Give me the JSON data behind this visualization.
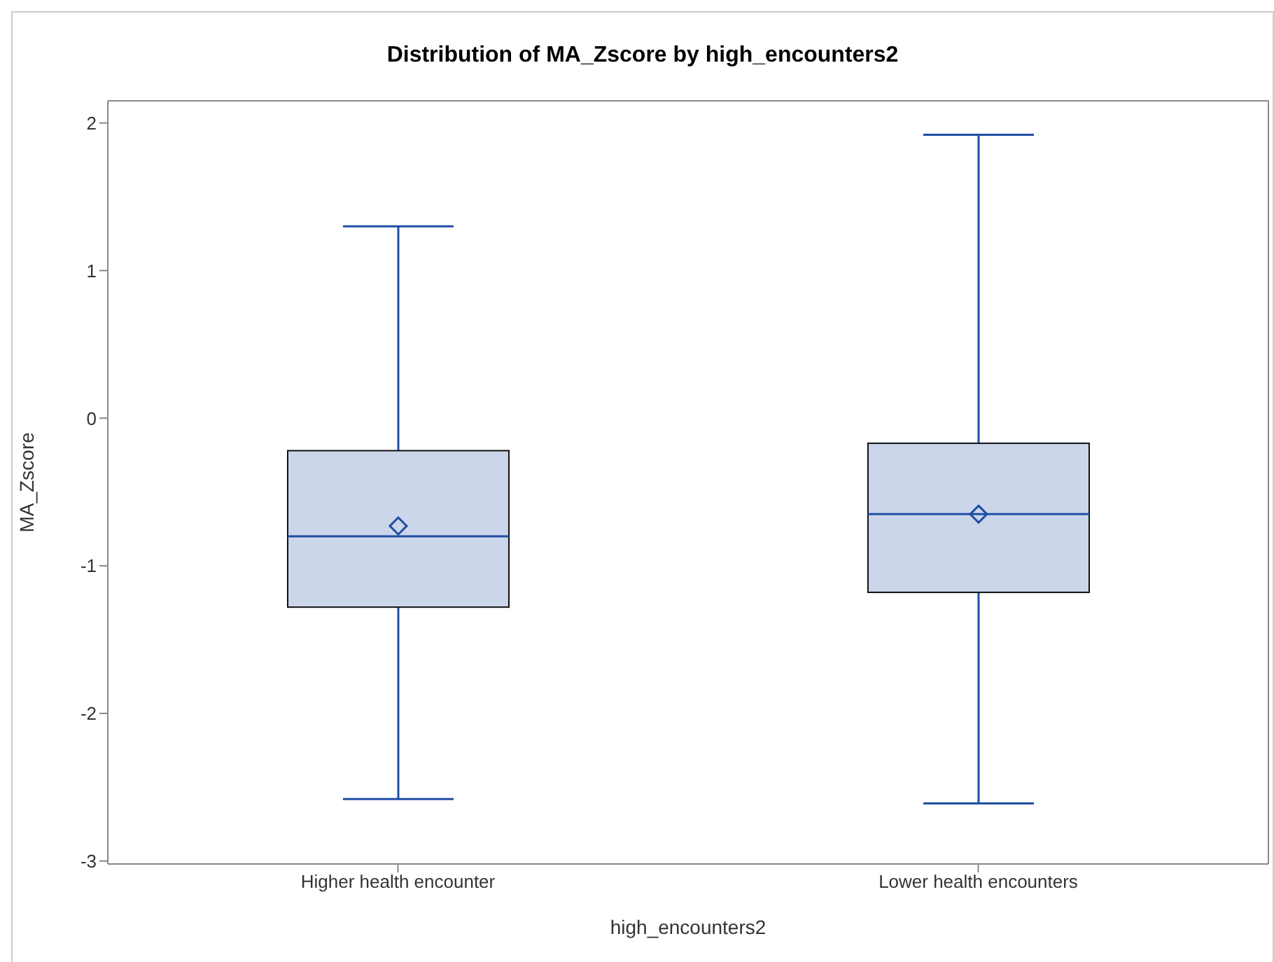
{
  "chart_data": {
    "type": "box",
    "title": "Distribution of MA_Zscore by high_encounters2",
    "xlabel": "high_encounters2",
    "ylabel": "MA_Zscore",
    "categories": [
      "Higher health encounter",
      "Lower health encounters"
    ],
    "series": [
      {
        "color": "#1f4ea3",
        "boxes": [
          {
            "low": -2.58,
            "q1": -1.28,
            "median": -0.8,
            "q3": -0.22,
            "high": 1.3,
            "mean": -0.73
          },
          {
            "low": -2.61,
            "q1": -1.18,
            "median": -0.65,
            "q3": -0.17,
            "high": 1.92,
            "mean": -0.65
          }
        ]
      }
    ],
    "ylim": [
      -3.02,
      2.15
    ],
    "yticks": [
      -3,
      -2,
      -1,
      0,
      1,
      2
    ],
    "grid": false,
    "legend": false
  }
}
